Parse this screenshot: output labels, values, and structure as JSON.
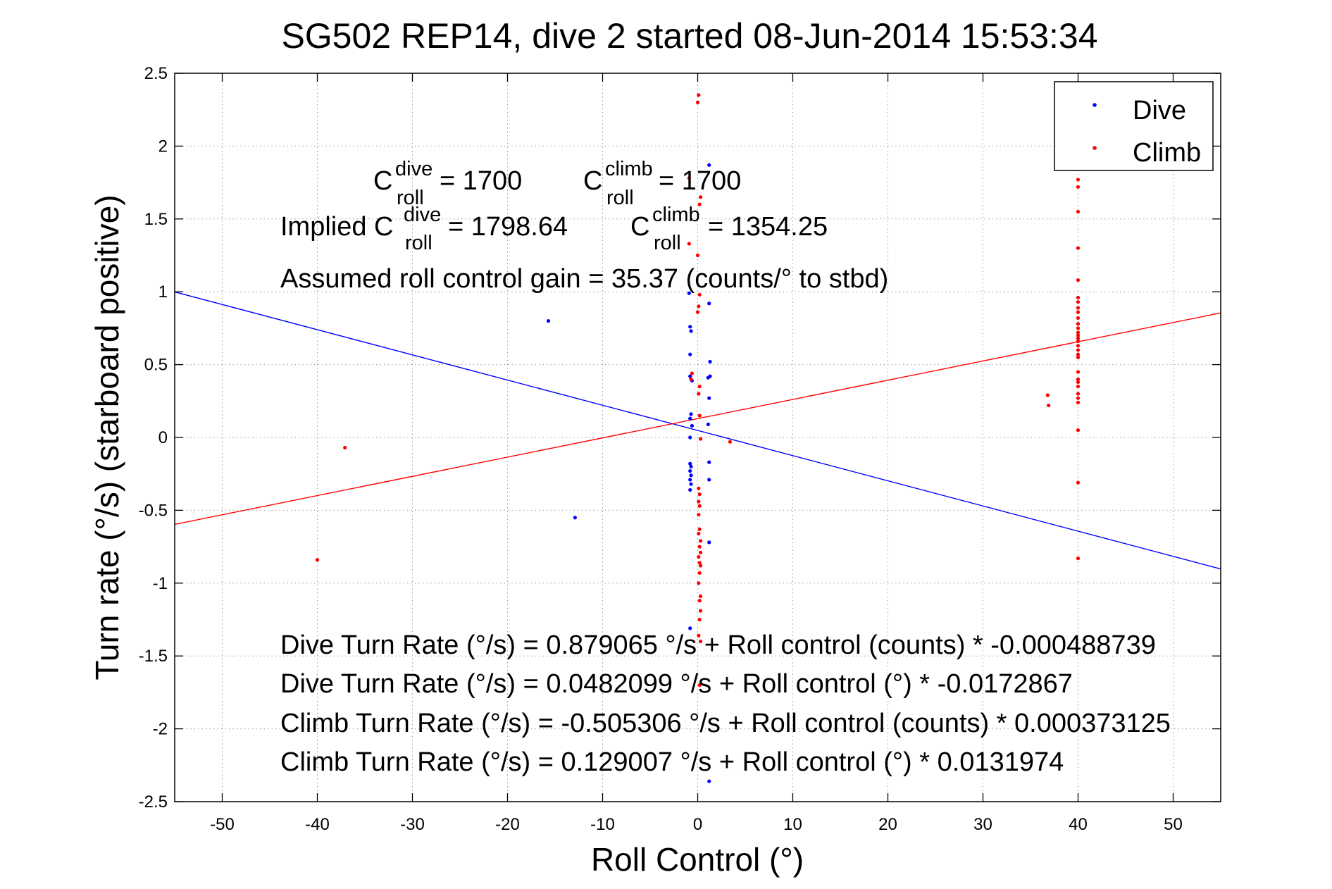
{
  "chart_data": {
    "type": "scatter",
    "title": "SG502 REP14, dive 2 started 08-Jun-2014 15:53:34",
    "xlabel": "Roll Control (°)",
    "ylabel": "Turn rate (°/s) (starboard positive)",
    "xlim": [
      -55,
      55
    ],
    "ylim": [
      -2.5,
      2.5
    ],
    "xticks": [
      -50,
      -40,
      -30,
      -20,
      -10,
      0,
      10,
      20,
      30,
      40,
      50
    ],
    "yticks": [
      -2.5,
      -2,
      -1.5,
      -1,
      -0.5,
      0,
      0.5,
      1,
      1.5,
      2,
      2.5
    ],
    "xtick_labels": [
      "-50",
      "-40",
      "-30",
      "-20",
      "-10",
      "0",
      "10",
      "20",
      "30",
      "40",
      "50"
    ],
    "ytick_labels": [
      "-2.5",
      "-2",
      "-1.5",
      "-1",
      "-0.5",
      "0",
      "0.5",
      "1",
      "1.5",
      "2",
      "2.5"
    ],
    "grid": true,
    "legend_position": "top-right",
    "series": [
      {
        "name": "Dive",
        "color": "#0000ff",
        "marker": "dot",
        "points": [
          [
            -15.7,
            0.8
          ],
          [
            -12.9,
            -0.55
          ],
          [
            -0.9,
            0.99
          ],
          [
            -0.8,
            0.76
          ],
          [
            -0.7,
            0.73
          ],
          [
            -0.8,
            0.57
          ],
          [
            -0.8,
            0.42
          ],
          [
            -0.6,
            0.39
          ],
          [
            -0.7,
            0.16
          ],
          [
            -0.8,
            0.13
          ],
          [
            -0.6,
            0.08
          ],
          [
            -0.8,
            0.0
          ],
          [
            -0.8,
            -0.18
          ],
          [
            -0.7,
            -0.2
          ],
          [
            -0.8,
            -0.23
          ],
          [
            -0.7,
            -0.26
          ],
          [
            -0.8,
            -0.29
          ],
          [
            -0.7,
            -0.32
          ],
          [
            -0.8,
            -0.36
          ],
          [
            -0.8,
            -1.31
          ],
          [
            1.2,
            1.87
          ],
          [
            1.2,
            0.92
          ],
          [
            1.3,
            0.52
          ],
          [
            1.3,
            0.42
          ],
          [
            1.1,
            0.41
          ],
          [
            1.2,
            0.27
          ],
          [
            1.1,
            0.09
          ],
          [
            1.2,
            -0.17
          ],
          [
            1.2,
            -0.29
          ],
          [
            1.2,
            -0.72
          ],
          [
            1.2,
            -2.36
          ]
        ]
      },
      {
        "name": "Climb",
        "color": "#ff0000",
        "marker": "dot",
        "points": [
          [
            -40.0,
            -0.84
          ],
          [
            -37.1,
            -0.07
          ],
          [
            3.4,
            -0.03
          ],
          [
            0.1,
            2.35
          ],
          [
            0.0,
            2.3
          ],
          [
            -0.9,
            1.78
          ],
          [
            0.3,
            1.65
          ],
          [
            0.2,
            1.6
          ],
          [
            -0.9,
            1.33
          ],
          [
            0.0,
            1.25
          ],
          [
            0.2,
            0.98
          ],
          [
            0.1,
            0.9
          ],
          [
            0.0,
            0.86
          ],
          [
            -0.6,
            0.44
          ],
          [
            -0.7,
            0.4
          ],
          [
            0.2,
            0.35
          ],
          [
            0.1,
            0.3
          ],
          [
            0.2,
            0.15
          ],
          [
            0.3,
            -0.01
          ],
          [
            0.1,
            -0.35
          ],
          [
            0.2,
            -0.39
          ],
          [
            0.1,
            -0.44
          ],
          [
            0.2,
            -0.47
          ],
          [
            0.1,
            -0.53
          ],
          [
            0.2,
            -0.63
          ],
          [
            0.1,
            -0.66
          ],
          [
            0.3,
            -0.71
          ],
          [
            0.2,
            -0.75
          ],
          [
            0.3,
            -0.79
          ],
          [
            0.1,
            -0.82
          ],
          [
            0.2,
            -0.86
          ],
          [
            0.3,
            -0.88
          ],
          [
            0.2,
            -0.93
          ],
          [
            0.1,
            -1.0
          ],
          [
            0.3,
            -1.09
          ],
          [
            0.2,
            -1.12
          ],
          [
            0.3,
            -1.19
          ],
          [
            0.2,
            -1.25
          ],
          [
            0.1,
            -1.36
          ],
          [
            0.3,
            -1.4
          ],
          [
            0.2,
            -1.7
          ],
          [
            36.8,
            0.29
          ],
          [
            36.9,
            0.22
          ],
          [
            40.0,
            1.77
          ],
          [
            40.0,
            1.72
          ],
          [
            40.0,
            1.55
          ],
          [
            40.0,
            1.3
          ],
          [
            40.0,
            1.08
          ],
          [
            40.0,
            0.96
          ],
          [
            40.0,
            0.93
          ],
          [
            40.0,
            0.89
          ],
          [
            40.0,
            0.86
          ],
          [
            40.0,
            0.82
          ],
          [
            40.0,
            0.78
          ],
          [
            40.0,
            0.75
          ],
          [
            40.0,
            0.72
          ],
          [
            40.0,
            0.7
          ],
          [
            40.0,
            0.68
          ],
          [
            40.0,
            0.66
          ],
          [
            40.0,
            0.63
          ],
          [
            40.0,
            0.6
          ],
          [
            40.0,
            0.57
          ],
          [
            40.0,
            0.55
          ],
          [
            40.0,
            0.45
          ],
          [
            40.0,
            0.4
          ],
          [
            40.0,
            0.38
          ],
          [
            40.0,
            0.35
          ],
          [
            40.0,
            0.3
          ],
          [
            40.0,
            0.27
          ],
          [
            40.0,
            0.24
          ],
          [
            40.0,
            0.05
          ],
          [
            40.0,
            -0.31
          ],
          [
            40.0,
            -0.83
          ]
        ]
      }
    ],
    "fit_lines": [
      {
        "series": "Dive",
        "color": "#0000ff",
        "intercept": 0.0482099,
        "slope": -0.0172867
      },
      {
        "series": "Climb",
        "color": "#ff0000",
        "intercept": 0.129007,
        "slope": 0.0131974
      }
    ],
    "annotations": {
      "c_roll_dive_base": "C",
      "c_roll_dive_sup": "dive",
      "c_roll_dive_sub": "roll",
      "c_roll_dive_value": " = 1700",
      "c_roll_climb_base": "C",
      "c_roll_climb_sup": "climb",
      "c_roll_climb_sub": "roll",
      "c_roll_climb_value": " = 1700",
      "implied_prefix": "Implied C",
      "implied_dive_sup": "dive",
      "implied_dive_sub": "roll",
      "implied_dive_value": " = 1798.64",
      "implied_climb_base": "C",
      "implied_climb_sup": "climb",
      "implied_climb_sub": "roll",
      "implied_climb_value": " = 1354.25",
      "gain": "Assumed roll control gain = 35.37 (counts/° to stbd)",
      "eq1": "Dive Turn Rate (°/s) = 0.879065 °/s + Roll control (counts) * -0.000488739",
      "eq2": "Dive Turn Rate (°/s) = 0.0482099 °/s + Roll control (°) * -0.0172867",
      "eq3": "Climb Turn Rate (°/s) = -0.505306 °/s + Roll control (counts) * 0.000373125",
      "eq4": "Climb Turn Rate (°/s) = 0.129007 °/s + Roll control (°) * 0.0131974"
    }
  }
}
